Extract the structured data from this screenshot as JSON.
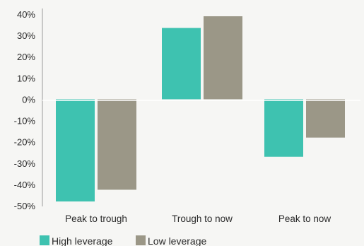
{
  "chart_data": {
    "type": "bar",
    "categories": [
      "Peak to trough",
      "Trough to now",
      "Peak to now"
    ],
    "series": [
      {
        "name": "High leverage",
        "color": "#3ec2b0",
        "values": [
          -48,
          33.5,
          -27
        ]
      },
      {
        "name": "Low leverage",
        "color": "#9b9787",
        "values": [
          -42.5,
          39,
          -18
        ]
      }
    ],
    "ylim": [
      -50,
      40
    ],
    "yticks": [
      40,
      30,
      20,
      10,
      0,
      -10,
      -20,
      -30,
      -40,
      -50
    ],
    "ytick_labels": [
      "40%",
      "30%",
      "20%",
      "10%",
      "0%",
      "-10%",
      "-20%",
      "-30%",
      "-40%",
      "-50%"
    ],
    "title": "",
    "xlabel": "",
    "ylabel": "",
    "grid": false,
    "legend": "bottom-left"
  }
}
